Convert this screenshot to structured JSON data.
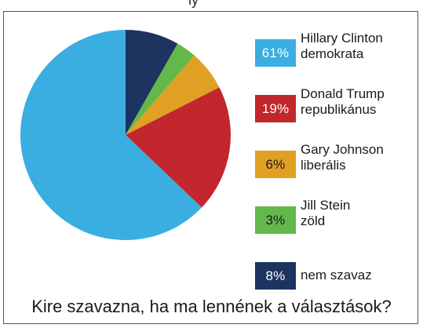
{
  "header": {
    "cut_text": "ly"
  },
  "chart_data": {
    "type": "pie",
    "caption": "Kire szavazna, ha ma lennének a választások?",
    "legend_position": "right",
    "slices": [
      {
        "value": 61,
        "label": "61%",
        "name": "Hillary Clinton",
        "party": "demokrata",
        "color": "#3aaee0"
      },
      {
        "value": 19,
        "label": "19%",
        "name": "Donald Trump",
        "party": "republikánus",
        "color": "#c1272d"
      },
      {
        "value": 6,
        "label": "6%",
        "name": "Gary Johnson",
        "party": "liberális",
        "color": "#e0a023"
      },
      {
        "value": 3,
        "label": "3%",
        "name": "Jill Stein",
        "party": "zöld",
        "color": "#63b84a"
      },
      {
        "value": 8,
        "label": "8%",
        "name": "nem szavaz",
        "party": "",
        "color": "#1d3461"
      }
    ]
  }
}
